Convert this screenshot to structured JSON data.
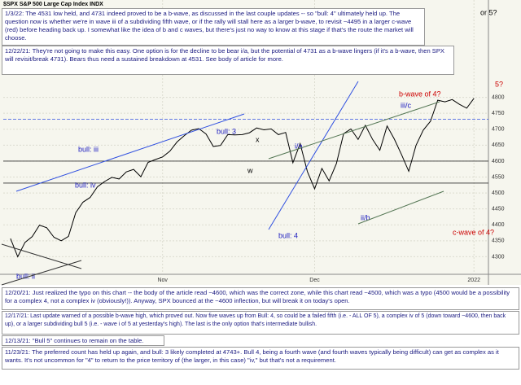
{
  "chart_data": {
    "type": "line",
    "title": "$SPX S&P 500 Large Cap Index INDX",
    "values": [
      4357,
      4300,
      4345,
      4363,
      4399,
      4391,
      4361,
      4350,
      4364,
      4438,
      4471,
      4486,
      4519,
      4536,
      4549,
      4544,
      4566,
      4574,
      4551,
      4596,
      4605,
      4613,
      4631,
      4660,
      4680,
      4697,
      4702,
      4685,
      4646,
      4649,
      4683,
      4682,
      4683,
      4689,
      4704,
      4698,
      4701,
      4683,
      4690,
      4595,
      4655,
      4567,
      4513,
      4577,
      4538,
      4592,
      4686,
      4701,
      4668,
      4712,
      4668,
      4634,
      4710,
      4669,
      4620,
      4568,
      4649,
      4697,
      4725,
      4791,
      4786,
      4793,
      4778,
      4766,
      4797
    ],
    "color": "#000000",
    "xlim": [
      -1,
      66
    ],
    "xticks": [
      {
        "value": 21,
        "label": "Nov"
      },
      {
        "value": 42,
        "label": "Dec"
      },
      {
        "value": 64,
        "label": "2022"
      }
    ],
    "ylim": [
      4250,
      4850
    ],
    "yticks": [
      4300,
      4350,
      4400,
      4450,
      4500,
      4550,
      4600,
      4650,
      4700,
      4750,
      4800
    ],
    "levels": [
      4731,
      4600,
      4531
    ],
    "grid": true,
    "annotations": [
      "or 5?",
      "5?",
      "b-wave of 4?",
      "iii/c",
      "bull: 3",
      "i/a",
      "bull: iii",
      "bull: iv",
      "x",
      "w",
      "bull: 4",
      "ii/b",
      "c-wave of 4?",
      "bull: ii"
    ]
  },
  "notes": [
    "1/3/22:  The 4531 low held, and 4731 indeed proved to be a b-wave, as discussed in the last couple updates -- so \"bull: 4\" ultimately held up.  The question now is whether we're in wave iii of a subdividing fifth wave, or if the rally will stall here as a larger b-wave, to revisit ~4495 in a larger c-wave (red) before heading back up.  I somewhat like the idea of b and c waves, but there's just no way to know at this stage if that's the route the market will choose.",
    "12/22/21:  They're not going to make this easy.  One option is for the decline to be bear i/a, but the potential of 4731 as a b-wave lingers (if it's a b-wave, then SPX will revisit/break 4731).  Bears thus need a sustained breakdown at 4531.  See body of article for more.",
    "12/20/21:  Just realized the typo on this chart -- the body of the article read ~4600, which was the correct zone, while this chart read ~4500, which was a typo (4500 would be a possibility for a complex 4, not a complex iv (obviously!)).  Anyway, SPX bounced at the ~4600 inflection, but will break it on today's open.",
    "12/17/21:  Last update warned of a possible b-wave high, which proved out.  Now five waves up from Bull: 4, so could be a failed fifth (i.e. - ALL OF 5), a complex iv of 5 (down toward ~4600, then back up), or a larger subdividing bull 5 (i.e. - wave i of 5 at yesterday's high).  The last is the only option that's intermediate bullish.",
    "12/13/21:  \"Bull 5\" continues to remain on the table.",
    "11/23/21:  The preferred count has held up again, and bull: 3 likely completed at 4743+.  Bull 4, being a fourth wave (and fourth waves typically being difficult) can get as complex as it wants.  It's not uncommon for \"4\" to return to the price territory of (the larger, in this case) \"iv,\" but that's not a requirement."
  ]
}
